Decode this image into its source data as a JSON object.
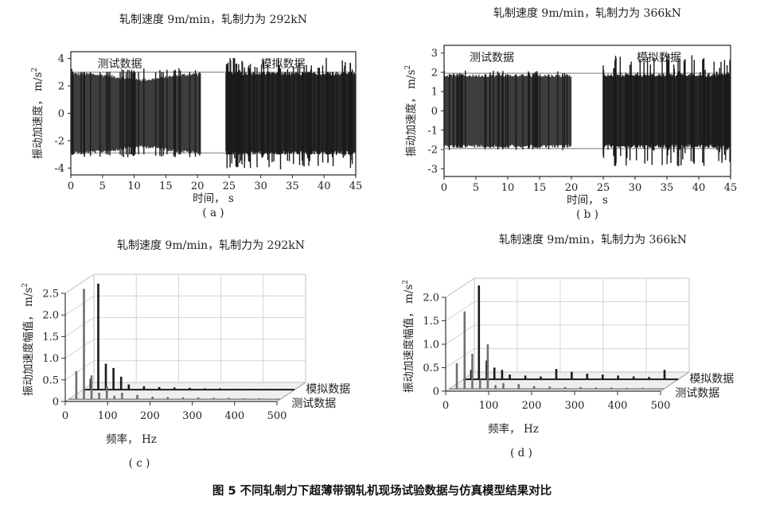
{
  "figure_caption": "图 5   不同轧制力下超薄带钢轧机现场试验数据与仿真模型结果对比",
  "chart_data": [
    {
      "id": "a",
      "type": "line",
      "panel_label": "( a )",
      "title": "轧制速度 9m/min，轧制力为 292kN",
      "xlabel": "时间， s",
      "ylabel": "振动加速度， m/s",
      "ylabel_sup": "2",
      "xlim": [
        0,
        45
      ],
      "ylim": [
        -4.5,
        4.5
      ],
      "xticks": [
        0,
        5,
        10,
        15,
        20,
        25,
        30,
        35,
        40,
        45
      ],
      "yticks": [
        -4,
        -2,
        0,
        2,
        4
      ],
      "series": [
        {
          "name": "测试数据",
          "x_range": [
            0,
            20.5
          ],
          "amplitude": 3.0,
          "peak": 3.3
        },
        {
          "name": "模拟数据",
          "x_range": [
            24.5,
            45
          ],
          "amplitude": 3.0,
          "peak": 4.1
        }
      ],
      "reference_lines": [
        3.0,
        -2.9
      ]
    },
    {
      "id": "b",
      "type": "line",
      "panel_label": "( b )",
      "title": "轧制速度 9m/min，轧制力为 366kN",
      "xlabel": "时间， s",
      "ylabel": "振动加速度， m/s",
      "ylabel_sup": "2",
      "xlim": [
        0,
        45
      ],
      "ylim": [
        -3.4,
        3.4
      ],
      "xticks": [
        0,
        5,
        10,
        15,
        20,
        25,
        30,
        35,
        40,
        45
      ],
      "yticks": [
        -3,
        -2,
        -1,
        0,
        1,
        2,
        3
      ],
      "series": [
        {
          "name": "测试数据",
          "x_range": [
            0,
            20
          ],
          "amplitude": 1.9,
          "peak": 2.1
        },
        {
          "name": "模拟数据",
          "x_range": [
            25,
            45
          ],
          "amplitude": 1.9,
          "peak": 2.9
        }
      ],
      "reference_lines": [
        1.95,
        -1.95
      ]
    },
    {
      "id": "c",
      "type": "bar",
      "panel_label": "( c )",
      "title": "轧制速度 9m/min，轧制力为 292kN",
      "xlabel": "频率， Hz",
      "ylabel": "振动加速度幅值， m/s",
      "ylabel_sup": "2",
      "xlim": [
        0,
        500
      ],
      "ylim": [
        0,
        2.5
      ],
      "xticks": [
        0,
        100,
        200,
        300,
        400,
        500
      ],
      "yticks": [
        0,
        0.5,
        1.0,
        1.5,
        2.0,
        2.5
      ],
      "series": [
        {
          "name": "测试数据",
          "x": [
            18,
            36,
            54,
            72,
            90,
            108,
            126,
            162,
            198,
            234,
            270,
            306,
            342,
            378,
            414,
            450
          ],
          "values": [
            0.65,
            2.55,
            0.55,
            0.15,
            0.3,
            0.08,
            0.15,
            0.1,
            0.06,
            0.05,
            0.04,
            0.04,
            0.03,
            0.03,
            0.02,
            0.02
          ]
        },
        {
          "name": "模拟数据",
          "x": [
            18,
            36,
            54,
            72,
            90,
            108,
            144,
            180,
            216,
            252,
            288,
            324,
            360,
            396,
            432,
            468
          ],
          "values": [
            0.25,
            2.45,
            0.6,
            0.5,
            0.3,
            0.12,
            0.08,
            0.06,
            0.05,
            0.04,
            0.03,
            0.03,
            0.02,
            0.02,
            0.02,
            0.02
          ]
        }
      ]
    },
    {
      "id": "d",
      "type": "bar",
      "panel_label": "( d )",
      "title": "轧制速度 9m/min，轧制力为 366kN",
      "xlabel": "频率， Hz",
      "ylabel": "振动加速度幅值， m/s",
      "ylabel_sup": "2",
      "xlim": [
        0,
        500
      ],
      "ylim": [
        0,
        2.0
      ],
      "xticks": [
        0,
        100,
        200,
        300,
        400,
        500
      ],
      "yticks": [
        0,
        0.5,
        1.0,
        1.5,
        2.0
      ],
      "series": [
        {
          "name": "测试数据",
          "x": [
            18,
            36,
            54,
            72,
            90,
            108,
            126,
            162,
            198,
            234,
            270,
            306,
            342,
            378,
            414,
            450
          ],
          "values": [
            0.55,
            1.65,
            0.75,
            0.2,
            0.95,
            0.08,
            0.12,
            0.1,
            0.06,
            0.05,
            0.04,
            0.04,
            0.03,
            0.03,
            0.02,
            0.02
          ]
        },
        {
          "name": "模拟数据",
          "x": [
            18,
            36,
            54,
            72,
            90,
            108,
            144,
            180,
            216,
            252,
            288,
            324,
            360,
            396,
            432,
            468
          ],
          "values": [
            0.2,
            2.0,
            0.4,
            0.25,
            0.2,
            0.1,
            0.08,
            0.06,
            0.22,
            0.16,
            0.12,
            0.1,
            0.08,
            0.06,
            0.05,
            0.2
          ]
        }
      ]
    }
  ]
}
